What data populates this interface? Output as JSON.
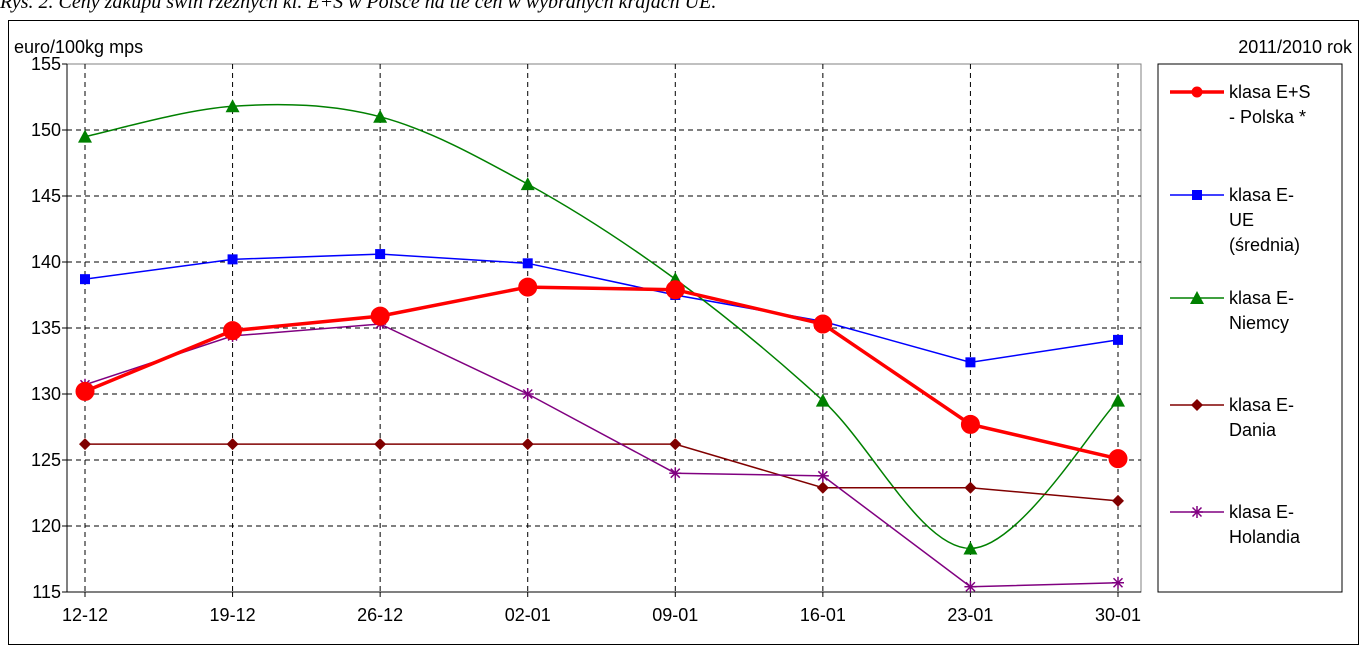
{
  "caption": "Rys. 2. Ceny zakupu świń rzeźnych kl. E+S w Polsce na tle cen w wybranych krajach UE.",
  "chart_data": {
    "type": "line",
    "ylabel": "euro/100kg mps",
    "period_label": "2011/2010 rok",
    "categories": [
      "12-12",
      "19-12",
      "26-12",
      "02-01",
      "09-01",
      "16-01",
      "23-01",
      "30-01"
    ],
    "ylim": [
      115,
      155
    ],
    "yticks": [
      "115",
      "120",
      "125",
      "130",
      "135",
      "140",
      "145",
      "150",
      "155"
    ],
    "grid": true,
    "legend_position": "right",
    "series": [
      {
        "name": "klasa E+S - Polska *",
        "legend_lines": [
          "klasa E+S",
          "- Polska *"
        ],
        "values": [
          130.2,
          134.8,
          135.9,
          138.1,
          137.9,
          135.3,
          127.7,
          125.1
        ],
        "color": "#ff0000",
        "marker": "circle",
        "smooth": false,
        "thick": true
      },
      {
        "name": "klasa E- UE (średnia)",
        "legend_lines": [
          "klasa E-",
          "UE",
          "(średnia)"
        ],
        "values": [
          138.7,
          140.2,
          140.6,
          139.9,
          137.5,
          135.5,
          132.4,
          134.1
        ],
        "color": "#0000ff",
        "marker": "square",
        "smooth": false,
        "thick": false
      },
      {
        "name": "klasa E- Niemcy",
        "legend_lines": [
          "klasa E-",
          "Niemcy"
        ],
        "values": [
          149.5,
          151.8,
          151.0,
          145.9,
          138.7,
          129.5,
          118.3,
          129.5
        ],
        "color": "#008000",
        "marker": "triangle",
        "smooth": true,
        "thick": false
      },
      {
        "name": "klasa E- Dania",
        "legend_lines": [
          "klasa E-",
          "Dania"
        ],
        "values": [
          126.2,
          126.2,
          126.2,
          126.2,
          126.2,
          122.9,
          122.9,
          121.9
        ],
        "color": "#800000",
        "marker": "diamond",
        "smooth": false,
        "thick": false
      },
      {
        "name": "klasa E- Holandia",
        "legend_lines": [
          "klasa E-",
          "Holandia"
        ],
        "values": [
          130.7,
          134.4,
          135.3,
          130.0,
          124.0,
          123.8,
          115.4,
          115.7
        ],
        "color": "#800080",
        "marker": "star",
        "smooth": false,
        "thick": false
      }
    ]
  }
}
